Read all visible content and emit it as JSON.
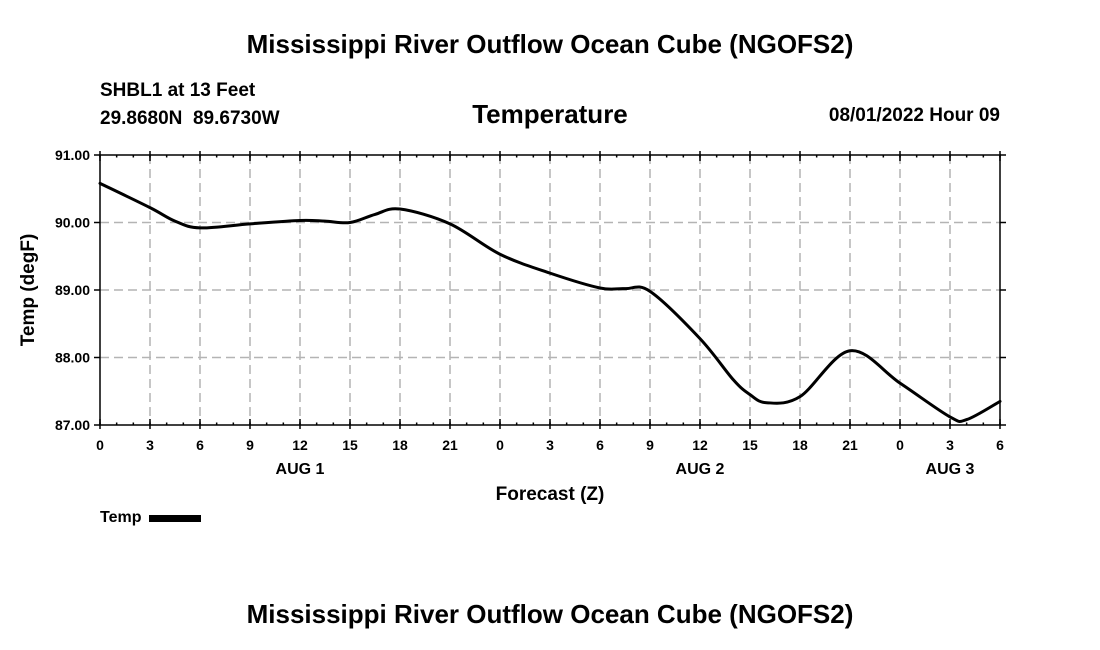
{
  "header": {
    "title": "Mississippi River Outflow Ocean Cube (NGOFS2)",
    "station": "SHBL1 at 13 Feet",
    "coords": "29.8680N  89.6730W",
    "subtitle": "Temperature",
    "datetime": "08/01/2022 Hour 09"
  },
  "legend": {
    "label": "Temp"
  },
  "footer": {
    "title": "Mississippi River Outflow Ocean Cube (NGOFS2)"
  },
  "colors": {
    "line": "#000000",
    "grid": "#b4b4b4",
    "background": "#ffffff"
  },
  "chart_data": {
    "type": "line",
    "title": "Temperature",
    "xlabel": "Forecast (Z)",
    "ylabel": "Temp (degF)",
    "ylim": [
      87.0,
      91.0
    ],
    "xlim": [
      0,
      54
    ],
    "grid": true,
    "legend_position": "bottom-left",
    "y_ticks": [
      87.0,
      88.0,
      89.0,
      90.0,
      91.0
    ],
    "y_tick_labels": [
      "87.00",
      "88.00",
      "89.00",
      "90.00",
      "91.00"
    ],
    "x_ticks": [
      0,
      3,
      6,
      9,
      12,
      15,
      18,
      21,
      24,
      27,
      30,
      33,
      36,
      39,
      42,
      45,
      48,
      51,
      54
    ],
    "x_tick_labels": [
      "0",
      "3",
      "6",
      "9",
      "12",
      "15",
      "18",
      "21",
      "0",
      "3",
      "6",
      "9",
      "12",
      "15",
      "18",
      "21",
      "0",
      "3",
      "6"
    ],
    "day_labels": [
      {
        "x": 12,
        "label": "AUG 1"
      },
      {
        "x": 36,
        "label": "AUG 2"
      },
      {
        "x": 51,
        "label": "AUG 3"
      }
    ],
    "series": [
      {
        "name": "Temp",
        "x": [
          0,
          3,
          4.5,
          6,
          9,
          12,
          13.5,
          15,
          16.5,
          18,
          21,
          24,
          27,
          30,
          31.5,
          33,
          36,
          38,
          39,
          40,
          42,
          45,
          48,
          51,
          52,
          54
        ],
        "values": [
          90.58,
          90.22,
          90.02,
          89.92,
          89.98,
          90.03,
          90.02,
          90.0,
          90.12,
          90.2,
          89.98,
          89.53,
          89.25,
          89.03,
          89.02,
          88.98,
          88.28,
          87.67,
          87.45,
          87.33,
          87.42,
          88.1,
          87.62,
          87.12,
          87.08,
          87.35
        ]
      }
    ]
  }
}
